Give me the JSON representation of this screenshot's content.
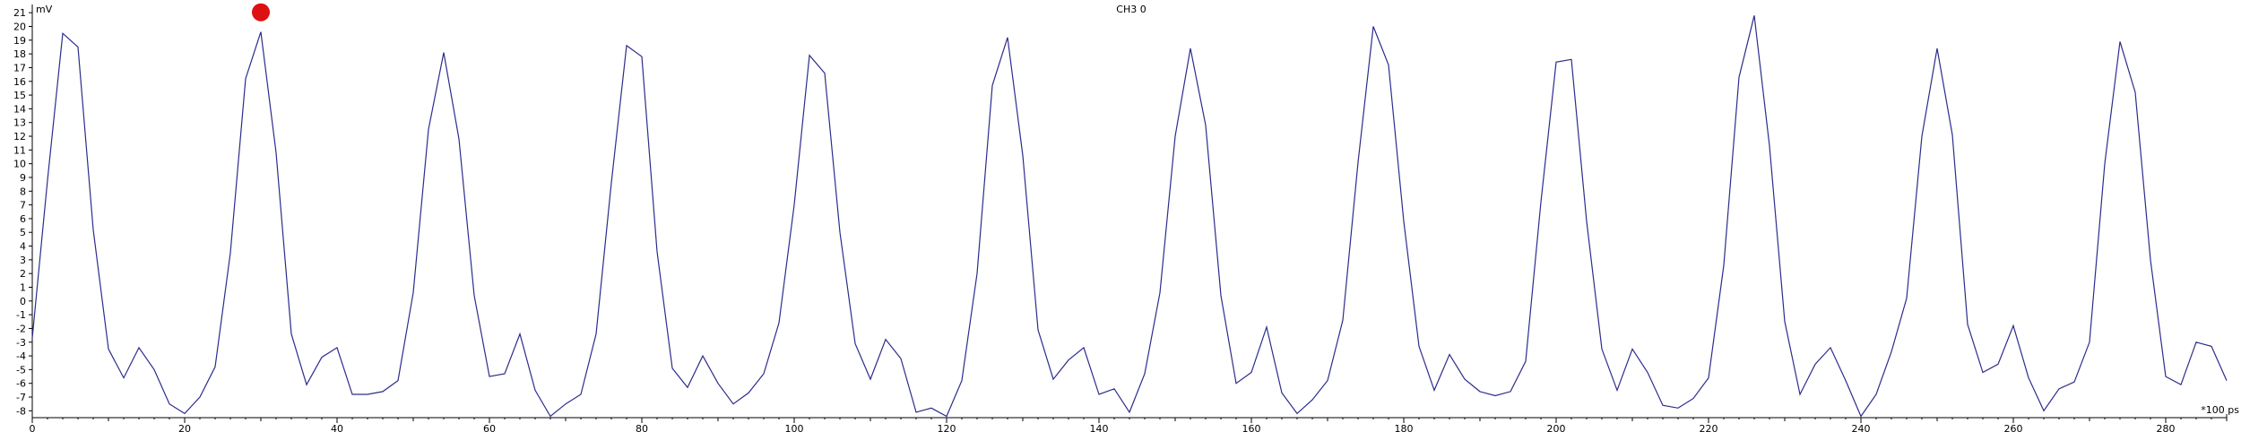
{
  "chart_data": {
    "type": "line",
    "title": "CH3 0",
    "ylabel": "mV",
    "xunit": "*100 ps",
    "xlim": [
      0,
      288
    ],
    "ylim": [
      -8.5,
      21.6
    ],
    "xticks": [
      0,
      20,
      40,
      60,
      80,
      100,
      120,
      140,
      160,
      180,
      200,
      220,
      240,
      260,
      280
    ],
    "yticks": [
      -8,
      -7,
      -6,
      -5,
      -4,
      -3,
      -2,
      -1,
      0,
      1,
      2,
      3,
      4,
      5,
      6,
      7,
      8,
      9,
      10,
      11,
      12,
      13,
      14,
      15,
      16,
      17,
      18,
      19,
      20,
      21
    ],
    "grid": false,
    "line_color": "#2c2c8c",
    "marker": {
      "x": 30,
      "y": 20.9,
      "color": "#dd1111"
    },
    "series": [
      {
        "x": [
          0,
          2,
          4,
          6,
          8,
          10,
          12,
          14,
          16,
          18,
          20,
          22,
          24,
          26,
          28,
          30,
          32,
          34,
          36,
          38,
          40,
          42,
          44,
          46,
          48,
          50,
          52,
          54,
          56,
          58,
          60,
          62,
          64,
          66,
          68,
          70,
          72,
          74,
          76,
          78,
          80,
          82,
          84,
          86,
          88,
          90,
          92,
          94,
          96,
          98,
          100,
          102,
          104,
          106,
          108,
          110,
          112,
          114,
          116,
          118,
          120,
          122,
          124,
          126,
          128,
          130,
          132,
          134,
          136,
          138,
          140,
          142,
          144,
          146,
          148,
          150,
          152,
          154,
          156,
          158,
          160,
          162,
          164,
          166,
          168,
          170,
          172,
          174,
          176,
          178,
          180,
          182,
          184,
          186,
          188,
          190,
          192,
          194,
          196,
          198,
          200,
          202,
          204,
          206,
          208,
          210,
          212,
          214,
          216,
          218,
          220,
          222,
          224,
          226,
          228,
          230,
          232,
          234,
          236,
          238,
          240,
          242,
          244,
          246,
          248,
          250,
          252,
          254,
          256,
          258,
          260,
          262,
          264,
          266,
          268,
          270,
          272,
          274,
          276,
          278,
          280,
          282,
          284,
          286,
          288
        ],
        "values": [
          -2.7,
          8.8,
          19.5,
          18.5,
          5.2,
          -3.5,
          -5.6,
          -3.4,
          -5.0,
          -7.5,
          -8.2,
          -7.0,
          -4.8,
          3.5,
          16.2,
          19.6,
          10.8,
          -2.4,
          -6.1,
          -4.1,
          -3.4,
          -6.8,
          -6.8,
          -6.6,
          -5.8,
          0.6,
          12.5,
          18.1,
          11.8,
          0.4,
          -5.5,
          -5.3,
          -2.4,
          -6.5,
          -8.4,
          -7.5,
          -6.8,
          -2.4,
          8.6,
          18.6,
          17.8,
          3.6,
          -4.9,
          -6.3,
          -4.0,
          -6.0,
          -7.5,
          -6.7,
          -5.3,
          -1.6,
          7.0,
          17.9,
          16.6,
          5.0,
          -3.1,
          -5.7,
          -2.8,
          -4.2,
          -8.1,
          -7.8,
          -8.4,
          -5.8,
          2.0,
          15.7,
          19.2,
          10.6,
          -2.1,
          -5.7,
          -4.3,
          -3.4,
          -6.8,
          -6.4,
          -8.1,
          -5.3,
          0.6,
          12.0,
          18.4,
          12.8,
          0.4,
          -6.0,
          -5.2,
          -1.9,
          -6.7,
          -8.2,
          -7.2,
          -5.8,
          -1.4,
          10.1,
          20.0,
          17.2,
          5.8,
          -3.3,
          -6.5,
          -3.9,
          -5.7,
          -6.6,
          -6.9,
          -6.6,
          -4.4,
          7.2,
          17.4,
          17.6,
          5.8,
          -3.5,
          -6.5,
          -3.5,
          -5.2,
          -7.6,
          -7.8,
          -7.1,
          -5.6,
          2.6,
          16.3,
          20.8,
          11.3,
          -1.5,
          -6.8,
          -4.6,
          -3.4,
          -5.8,
          -8.4,
          -6.8,
          -3.7,
          0.2,
          12.0,
          18.4,
          12.1,
          -1.7,
          -5.2,
          -4.6,
          -1.8,
          -5.6,
          -8.0,
          -6.4,
          -5.9,
          -3.0,
          10.0,
          18.9,
          15.2,
          3.0,
          -5.5,
          -6.1,
          -3.0,
          -3.3,
          -5.8
        ]
      }
    ]
  }
}
